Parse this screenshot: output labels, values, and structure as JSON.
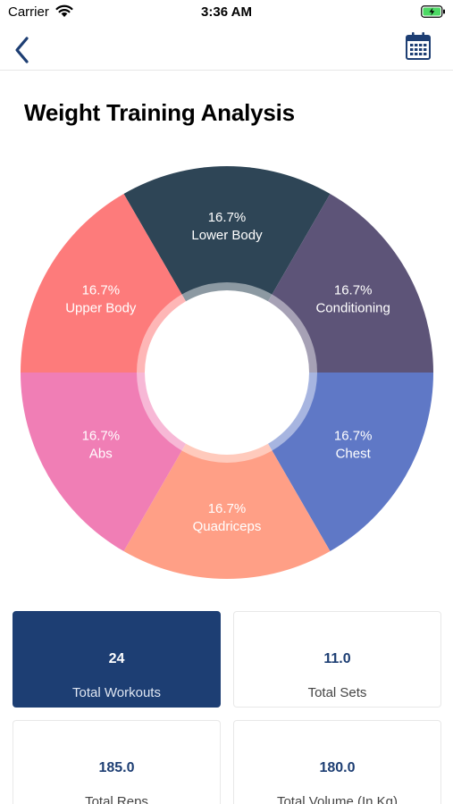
{
  "status_bar": {
    "carrier": "Carrier",
    "time": "3:36 AM",
    "wifi_icon": "wifi-icon",
    "battery_icon": "battery-charging-icon"
  },
  "nav": {
    "back_icon": "chevron-left-icon",
    "calendar_icon": "calendar-icon",
    "accent_color": "#1d3e73"
  },
  "page": {
    "title": "Weight Training Analysis"
  },
  "chart_data": {
    "type": "pie",
    "donut": true,
    "title": "",
    "slices": [
      {
        "label": "Lower Body",
        "value": 16.7,
        "value_label": "16.7%",
        "color": "#2e4556"
      },
      {
        "label": "Conditioning",
        "value": 16.7,
        "value_label": "16.7%",
        "color": "#5d5478"
      },
      {
        "label": "Chest",
        "value": 16.7,
        "value_label": "16.7%",
        "color": "#5f78c6"
      },
      {
        "label": "Quadriceps",
        "value": 16.7,
        "value_label": "16.7%",
        "color": "#ff9f86"
      },
      {
        "label": "Abs",
        "value": 16.7,
        "value_label": "16.7%",
        "color": "#f07eb5"
      },
      {
        "label": "Upper Body",
        "value": 16.7,
        "value_label": "16.7%",
        "color": "#fd7b7b"
      }
    ]
  },
  "stats": [
    {
      "value": "24",
      "label": "Total Workouts",
      "selected": true
    },
    {
      "value": "11.0",
      "label": "Total Sets",
      "selected": false
    },
    {
      "value": "185.0",
      "label": "Total Reps",
      "selected": false
    },
    {
      "value": "180.0",
      "label": "Total Volume (In Kg)",
      "selected": false
    }
  ]
}
